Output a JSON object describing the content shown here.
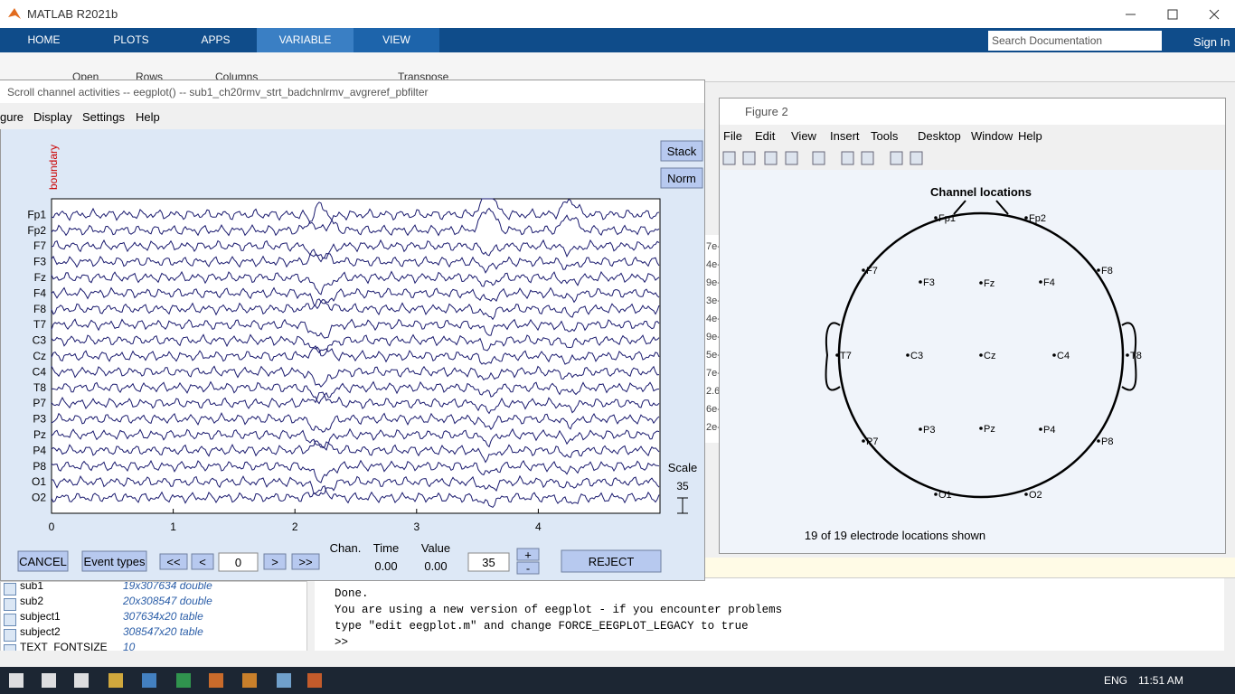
{
  "app": {
    "title": "MATLAB R2021b",
    "tabs": [
      "HOME",
      "PLOTS",
      "APPS",
      "VARIABLE",
      "VIEW"
    ],
    "search": "Search Documentation",
    "sign_in": "Sign In",
    "ribbon": [
      "Open",
      "Rows",
      "Columns",
      "Transpose"
    ],
    "cells": [
      "7e-",
      "4e-",
      "9e-",
      "3e-",
      "4e-",
      "9e-",
      "5e-",
      "7e-",
      "2.6",
      "6e-",
      "2e-"
    ]
  },
  "eegplot": {
    "title": "Scroll channel activities -- eegplot() -- sub1_ch20rmv_strt_badchnlrmv_avgreref_pbfilter",
    "menus": [
      "gure",
      "Display",
      "Settings",
      "Help"
    ],
    "buttons": [
      "Stack",
      "Norm"
    ],
    "event_label": "boundary",
    "channels": [
      "Fp1",
      "Fp2",
      "F7",
      "F3",
      "Fz",
      "F4",
      "F8",
      "T7",
      "C3",
      "Cz",
      "C4",
      "T8",
      "P7",
      "P3",
      "Pz",
      "P4",
      "P8",
      "O1",
      "O2"
    ],
    "xlim": [
      0,
      5
    ],
    "xticks": [
      0,
      1,
      2,
      3,
      4
    ],
    "scale_label": "Scale",
    "scale_value": "35",
    "controls": {
      "cancel": "CANCEL",
      "event_types": "Event types",
      "first": "<<",
      "prev": "<",
      "position": "0",
      "next": ">",
      "last": ">>",
      "chan_label": "Chan.",
      "time_label": "Time",
      "value_label": "Value",
      "time": "0.00",
      "value": "0.00",
      "scale_input": "35",
      "plus": "+",
      "minus": "-",
      "reject": "REJECT"
    }
  },
  "figure2": {
    "title": "Figure 2",
    "menus": [
      "File",
      "Edit",
      "View",
      "Insert",
      "Tools",
      "Desktop",
      "Window",
      "Help"
    ],
    "plot_title": "Channel locations",
    "electrodes": [
      "Fp1",
      "Fp2",
      "F7",
      "F3",
      "Fz",
      "F4",
      "F8",
      "T7",
      "C3",
      "Cz",
      "C4",
      "T8",
      "P7",
      "P3",
      "Pz",
      "P4",
      "P8",
      "O1",
      "O2"
    ],
    "footer": "19 of 19 electrode locations shown"
  },
  "workspace": {
    "rows": [
      [
        "sub1",
        "19x307634 double"
      ],
      [
        "sub2",
        "20x308547 double"
      ],
      [
        "subject1",
        "307634x20 table"
      ],
      [
        "subject2",
        "308547x20 table"
      ],
      [
        "TEXT_FONTSIZE",
        "10"
      ]
    ]
  },
  "command_window": {
    "lines": [
      "Done.",
      "You are using a new version of eegplot - if you encounter problems",
      "type \"edit eegplot.m\" and change FORCE_EEGPLOT_LEGACY to true"
    ],
    "prompt": ">>"
  },
  "taskbar": {
    "language": "ENG",
    "time": "11:51 AM"
  }
}
